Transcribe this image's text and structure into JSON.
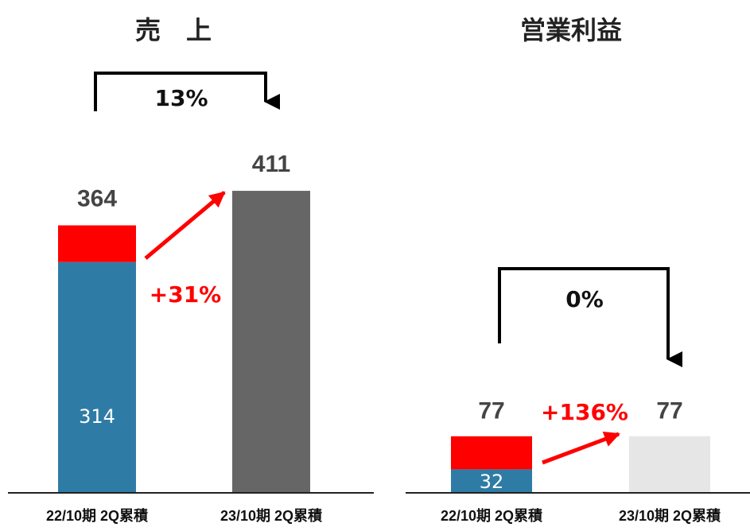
{
  "chart_data": [
    {
      "type": "bar",
      "stacked": true,
      "title": "売　上",
      "categories": [
        "22/10期 2Q累積",
        "23/10期 2Q累積"
      ],
      "series": [
        {
          "color": "#2e7ca6",
          "values": [
            314,
            null
          ]
        },
        {
          "color": "#ff0000",
          "values": [
            50,
            null
          ]
        },
        {
          "color": "#666666",
          "values": [
            null,
            411
          ]
        }
      ],
      "totals": [
        364,
        411
      ],
      "change": "13%",
      "growth": "+31%",
      "ylim": [
        0,
        450
      ]
    },
    {
      "type": "bar",
      "stacked": true,
      "title": "営業利益",
      "categories": [
        "22/10期 2Q累積",
        "23/10期 2Q累積"
      ],
      "series": [
        {
          "color": "#2e7ca6",
          "values": [
            32,
            null
          ]
        },
        {
          "color": "#ff0000",
          "values": [
            45,
            null
          ]
        },
        {
          "color": "#e6e6e6",
          "values": [
            null,
            77
          ]
        }
      ],
      "totals": [
        77,
        77
      ],
      "change": "0%",
      "growth": "+136%",
      "ylim": [
        0,
        450
      ]
    }
  ]
}
